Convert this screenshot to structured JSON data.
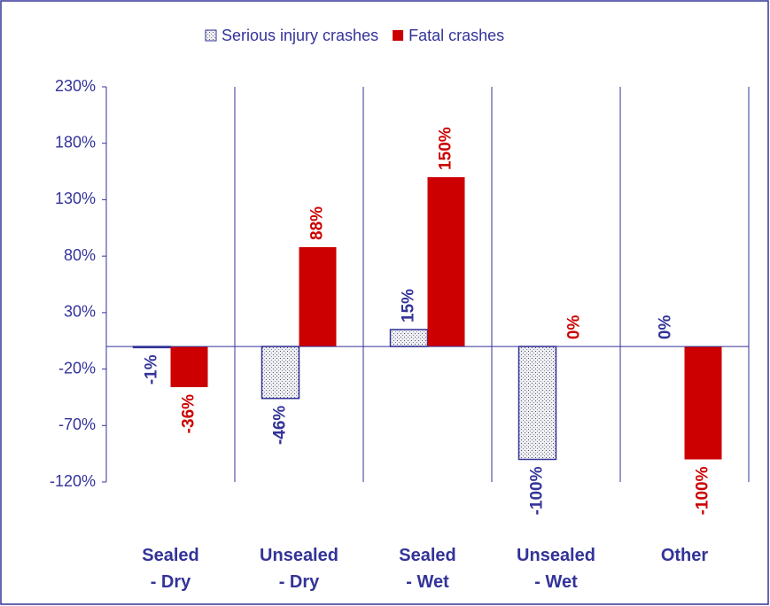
{
  "chart_data": {
    "type": "bar",
    "categories": [
      "Sealed\n- Dry",
      "Unsealed\n- Dry",
      "Sealed\n- Wet",
      "Unsealed\n- Wet",
      "Other"
    ],
    "series": [
      {
        "name": "Serious injury crashes",
        "color": "#333399",
        "pattern": "dotted",
        "values": [
          -1,
          -46,
          15,
          -100,
          0
        ],
        "value_labels": [
          "-1%",
          "-46%",
          "15%",
          "-100%",
          "0%"
        ]
      },
      {
        "name": "Fatal crashes",
        "color": "#cc0000",
        "values": [
          -36,
          88,
          150,
          0,
          -100
        ],
        "value_labels": [
          "-36%",
          "88%",
          "150%",
          "0%",
          "-100%"
        ]
      }
    ],
    "ylim": [
      -120,
      230
    ],
    "yticks": [
      {
        "value": 230,
        "label": "230%"
      },
      {
        "value": 180,
        "label": "180%"
      },
      {
        "value": 130,
        "label": "130%"
      },
      {
        "value": 80,
        "label": "80%"
      },
      {
        "value": 30,
        "label": "30%"
      },
      {
        "value": -20,
        "label": "-20%"
      },
      {
        "value": -70,
        "label": "-70%"
      },
      {
        "value": -120,
        "label": "-120%"
      }
    ],
    "legend": "top"
  }
}
